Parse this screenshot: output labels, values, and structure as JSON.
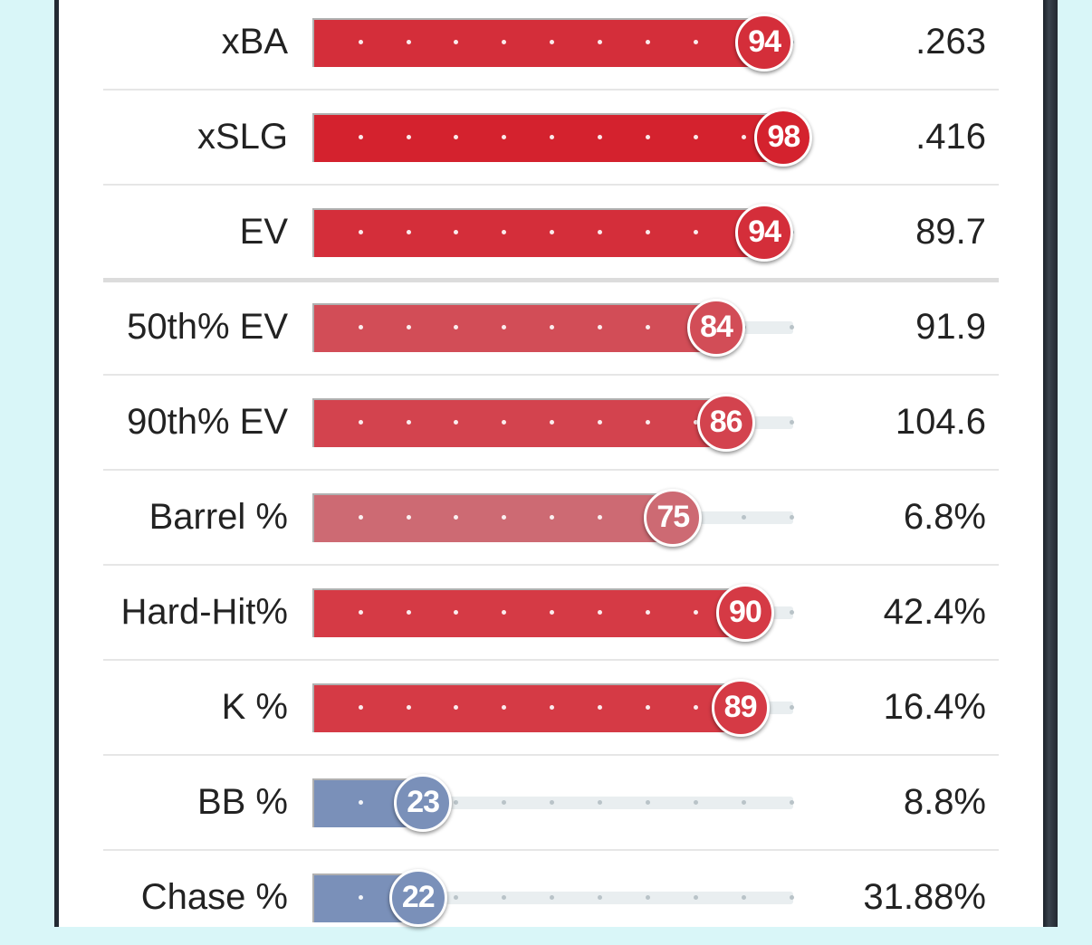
{
  "chart_data": {
    "type": "bar",
    "orientation": "horizontal",
    "title": "",
    "xlim": [
      0,
      100
    ],
    "value_kind": "percentile",
    "rows": [
      {
        "label": "xBA",
        "percentile": 94,
        "value": ".263",
        "color": "#d42e3a"
      },
      {
        "label": "xSLG",
        "percentile": 98,
        "value": ".416",
        "color": "#d4222e"
      },
      {
        "label": "EV",
        "percentile": 94,
        "value": "89.7",
        "color": "#d42e3a"
      },
      {
        "label": "50th% EV",
        "percentile": 84,
        "value": "91.9",
        "color": "#d24d57"
      },
      {
        "label": "90th% EV",
        "percentile": 86,
        "value": "104.6",
        "color": "#d3434e"
      },
      {
        "label": "Barrel %",
        "percentile": 75,
        "value": "6.8%",
        "color": "#cd6a73"
      },
      {
        "label": "Hard-Hit%",
        "percentile": 90,
        "value": "42.4%",
        "color": "#d53a45"
      },
      {
        "label": "K %",
        "percentile": 89,
        "value": "16.4%",
        "color": "#d53a45"
      },
      {
        "label": "BB %",
        "percentile": 23,
        "value": "8.8%",
        "color": "#7a90b9"
      },
      {
        "label": "Chase %",
        "percentile": 22,
        "value": "31.88%",
        "color": "#7a90b9"
      }
    ]
  },
  "colors": {
    "page_background": "#d9f6f8",
    "card_background": "#ffffff",
    "track": "#e9eef0",
    "divider": "#e6e6e6"
  }
}
